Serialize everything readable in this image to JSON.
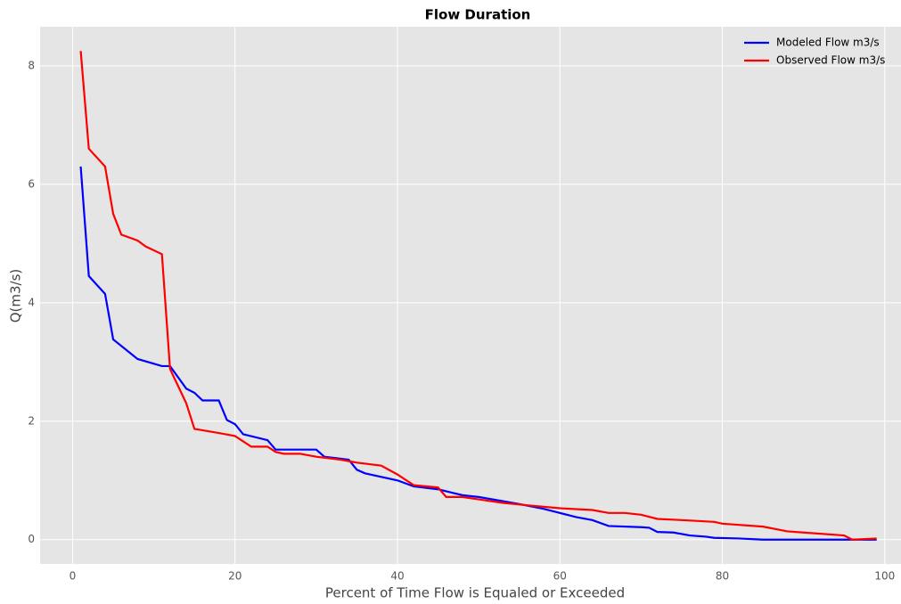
{
  "chart_data": {
    "type": "line",
    "title": "Flow Duration",
    "x_label": "Percent of Time Flow is Equaled or Exceeded",
    "y_label": "Q(m3/s)",
    "xlim": [
      -4,
      102
    ],
    "ylim": [
      -0.41,
      8.66
    ],
    "xticks": [
      0,
      20,
      40,
      60,
      80,
      100
    ],
    "yticks": [
      0,
      2,
      4,
      6,
      8
    ],
    "grid": true,
    "legend": "upper right",
    "series": [
      {
        "name": "Modeled Flow m3/s",
        "color": "#0000ff",
        "x": [
          1,
          2,
          4,
          5,
          8,
          11,
          12,
          14,
          15,
          16,
          18,
          19,
          20,
          21,
          24,
          25,
          30,
          31,
          34,
          35,
          36,
          40,
          42,
          45,
          48,
          50,
          53,
          55,
          58,
          60,
          62,
          64,
          66,
          70,
          71,
          72,
          74,
          76,
          78,
          79,
          82,
          85,
          96,
          99
        ],
        "values": [
          6.3,
          4.45,
          4.15,
          3.38,
          3.05,
          2.93,
          2.93,
          2.55,
          2.48,
          2.35,
          2.35,
          2.02,
          1.95,
          1.78,
          1.68,
          1.52,
          1.52,
          1.4,
          1.35,
          1.18,
          1.12,
          1.0,
          0.9,
          0.85,
          0.75,
          0.72,
          0.65,
          0.6,
          0.52,
          0.45,
          0.38,
          0.33,
          0.23,
          0.21,
          0.2,
          0.13,
          0.12,
          0.07,
          0.05,
          0.03,
          0.02,
          0.0,
          0.0,
          0.0
        ]
      },
      {
        "name": "Observed Flow m3/s",
        "color": "#ff0000",
        "x": [
          1,
          2,
          4,
          5,
          6,
          8,
          9,
          11,
          12,
          14,
          15,
          18,
          20,
          22,
          24,
          25,
          26,
          28,
          30,
          33,
          35,
          38,
          40,
          42,
          45,
          46,
          48,
          50,
          53,
          56,
          60,
          64,
          66,
          68,
          70,
          72,
          75,
          79,
          80,
          85,
          88,
          90,
          95,
          96,
          99
        ],
        "values": [
          8.25,
          6.6,
          6.3,
          5.5,
          5.15,
          5.05,
          4.95,
          4.82,
          2.88,
          2.3,
          1.87,
          1.8,
          1.75,
          1.57,
          1.57,
          1.48,
          1.45,
          1.45,
          1.4,
          1.35,
          1.3,
          1.25,
          1.1,
          0.92,
          0.88,
          0.72,
          0.72,
          0.68,
          0.62,
          0.58,
          0.53,
          0.5,
          0.45,
          0.45,
          0.42,
          0.35,
          0.33,
          0.3,
          0.27,
          0.22,
          0.14,
          0.12,
          0.07,
          0.0,
          0.02
        ]
      }
    ]
  }
}
